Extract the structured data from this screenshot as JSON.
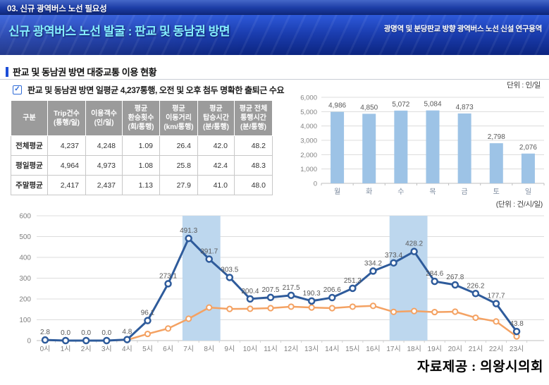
{
  "header": {
    "kicker": "03. 신규 광역버스 노선 필요성",
    "title": "신규 광역버스 노선 발굴 : 판교 및 동남권 방면",
    "subtitle": "광명역 및 분당판교 방향 광역버스 노선 신설 연구용역"
  },
  "section": {
    "title": "판교 및 동남권 방면 대중교통 이용 현황",
    "key_finding": "판교 및 동남권 방면 일평균 4,237통행, 오전 및 오후 첨두 명확한 출퇴근 수요"
  },
  "table": {
    "columns": [
      "구분",
      "Trip건수\n(통행/일)",
      "이용객수\n(인/일)",
      "평균\n환승횟수\n(회/통행)",
      "평균\n이동거리\n(km/통행)",
      "평균\n탑승시간\n(분/통행)",
      "평균 전체\n통행시간\n(분/통행)"
    ],
    "rows": [
      [
        "전체평균",
        "4,237",
        "4,248",
        "1.09",
        "26.4",
        "42.0",
        "48.2"
      ],
      [
        "평일평균",
        "4,964",
        "4,973",
        "1.08",
        "25.8",
        "42.4",
        "48.3"
      ],
      [
        "주말평균",
        "2,417",
        "2,437",
        "1.13",
        "27.9",
        "41.0",
        "48.0"
      ]
    ]
  },
  "chart_data": [
    {
      "type": "bar",
      "title": "단위 : 인/일",
      "categories": [
        "월",
        "화",
        "수",
        "목",
        "금",
        "토",
        "일"
      ],
      "values": [
        4986,
        4850,
        5072,
        5084,
        4873,
        2798,
        2076
      ],
      "value_labels": [
        "4,986",
        "4,850",
        "5,072",
        "5,084",
        "4,873",
        "2,798",
        "2,076"
      ],
      "ylim": [
        0,
        6000
      ],
      "ytick_step": 1000,
      "bar_color": "#9DC3E6",
      "grid": true,
      "legend": false
    },
    {
      "type": "line",
      "title": "(단위 : 건/시/일)",
      "x": [
        "0시",
        "1시",
        "2시",
        "3시",
        "4시",
        "5시",
        "6시",
        "7시",
        "8시",
        "9시",
        "10시",
        "11시",
        "12시",
        "13시",
        "14시",
        "15시",
        "16시",
        "17시",
        "18시",
        "19시",
        "20시",
        "21시",
        "22시",
        "23시"
      ],
      "series": [
        {
          "name": "blue-series",
          "color": "#2E5B9B",
          "values": [
            2.8,
            0.0,
            0.0,
            0.0,
            4.8,
            96.1,
            273.1,
            491.3,
            391.7,
            303.5,
            200.4,
            207.5,
            217.5,
            190.3,
            206.6,
            251.3,
            334.2,
            373.4,
            428.2,
            284.6,
            267.8,
            226.2,
            177.7,
            43.8
          ],
          "labels": [
            "2.8",
            "0.0",
            "0.0",
            "0.0",
            "4.8",
            "96.1",
            "273.1",
            "491.3",
            "391.7",
            "303.5",
            "200.4",
            "207.5",
            "217.5",
            "190.3",
            "206.6",
            "251.3",
            "334.2",
            "373.4",
            "428.2",
            "284.6",
            "267.8",
            "226.2",
            "177.7",
            "43.8"
          ]
        },
        {
          "name": "orange-series",
          "color": "#F4A263",
          "values": [
            2,
            0,
            0,
            0,
            3,
            32,
            58,
            105,
            159,
            152,
            153,
            156,
            163,
            159,
            156,
            163,
            167,
            138,
            142,
            137,
            139,
            110,
            92,
            20
          ]
        }
      ],
      "ylim": [
        0,
        600
      ],
      "ytick_step": 100,
      "highlight_bands": [
        {
          "from": 6.7,
          "to": 8.55
        },
        {
          "from": 16.8,
          "to": 18.65
        }
      ],
      "band_color": "#BDD7EE",
      "grid": true,
      "legend": false
    }
  ],
  "footer": {
    "credit": "자료제공 : 의왕시의회"
  }
}
